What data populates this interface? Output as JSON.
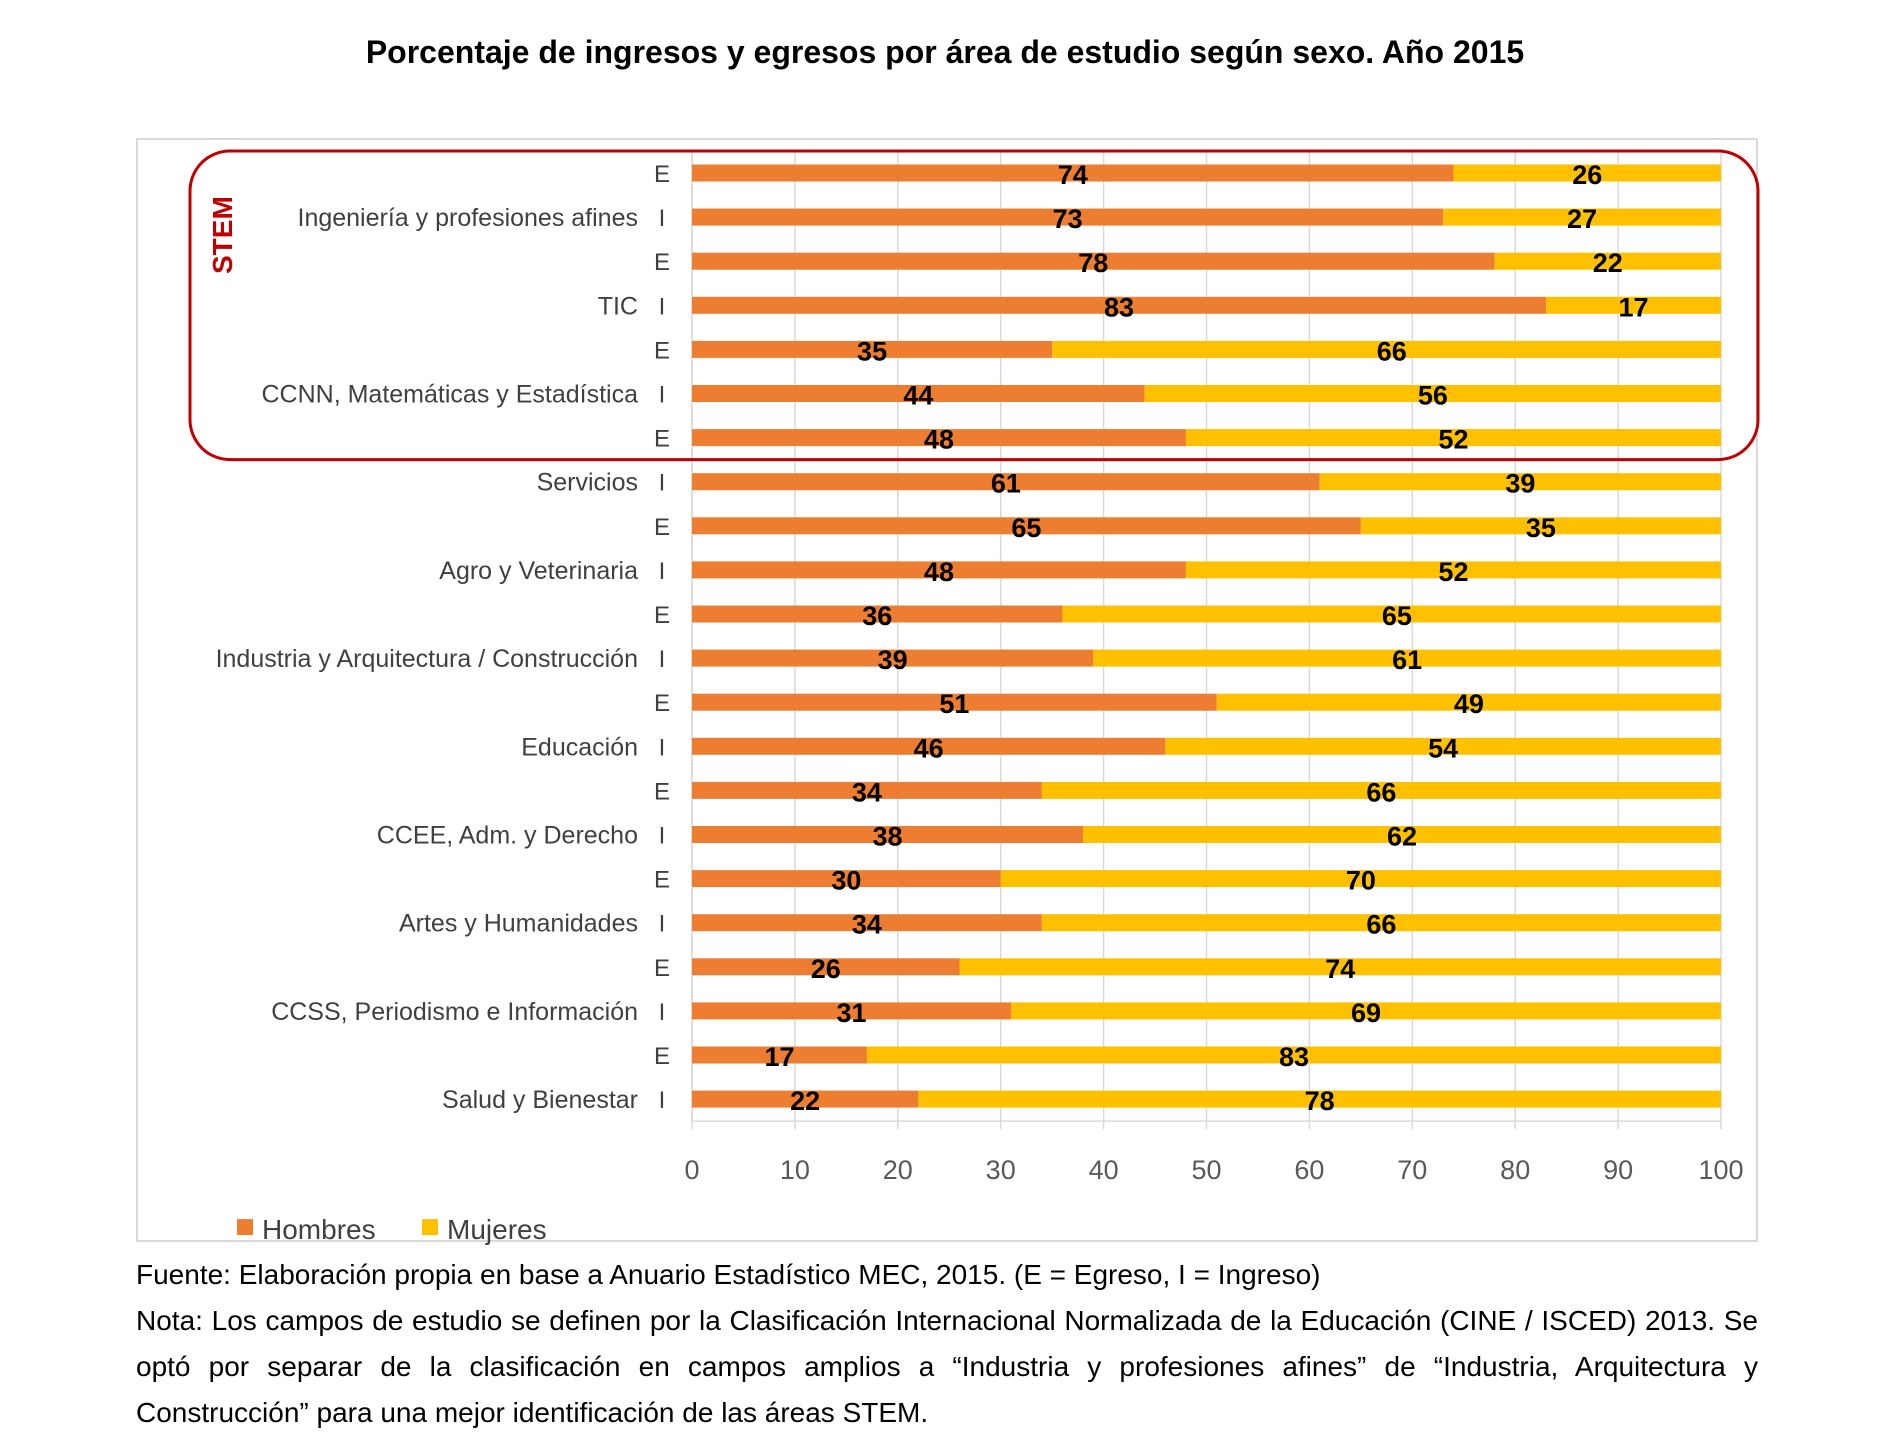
{
  "title": "Porcentaje de ingresos y egresos por área de estudio según sexo. Año 2015",
  "colors": {
    "hombres": "#ED7D31",
    "mujeres": "#FFC000",
    "stem_box": "#C00000",
    "grid": "#D9D9D9",
    "axis_text": "#595959"
  },
  "stem_label": "STEM",
  "notes": {
    "fuente": "Fuente: Elaboración propia en base a Anuario Estadístico MEC, 2015. (E = Egreso, I = Ingreso)",
    "nota": "Nota: Los campos de estudio se definen por la Clasificación Internacional Normalizada de la Educación (CINE / ISCED) 2013. Se optó por separar de la clasificación en campos amplios a “Industria y profesiones afines” de “Industria, Arquitectura y Construcción” para una mejor identificación de las áreas STEM."
  },
  "chart_data": {
    "type": "bar",
    "orientation": "horizontal",
    "stacked": true,
    "title": "Porcentaje de ingresos y egresos por área de estudio según sexo. Año 2015",
    "xlim": [
      0,
      100
    ],
    "xticks": [
      0,
      10,
      20,
      30,
      40,
      50,
      60,
      70,
      80,
      90,
      100
    ],
    "grid": true,
    "legend_position": "bottom-left",
    "categories": [
      {
        "area": "",
        "tipo": "E"
      },
      {
        "area": "Ingeniería y profesiones afines",
        "tipo": "I"
      },
      {
        "area": "",
        "tipo": "E"
      },
      {
        "area": "TIC",
        "tipo": "I"
      },
      {
        "area": "",
        "tipo": "E"
      },
      {
        "area": "CCNN, Matemáticas y Estadística",
        "tipo": "I"
      },
      {
        "area": "",
        "tipo": "E"
      },
      {
        "area": "Servicios",
        "tipo": "I"
      },
      {
        "area": "",
        "tipo": "E"
      },
      {
        "area": "Agro y Veterinaria",
        "tipo": "I"
      },
      {
        "area": "",
        "tipo": "E"
      },
      {
        "area": "Industria y Arquitectura / Construcción",
        "tipo": "I"
      },
      {
        "area": "",
        "tipo": "E"
      },
      {
        "area": "Educación",
        "tipo": "I"
      },
      {
        "area": "",
        "tipo": "E"
      },
      {
        "area": "CCEE, Adm. y Derecho",
        "tipo": "I"
      },
      {
        "area": "",
        "tipo": "E"
      },
      {
        "area": "Artes y Humanidades",
        "tipo": "I"
      },
      {
        "area": "",
        "tipo": "E"
      },
      {
        "area": "CCSS, Periodismo e Información",
        "tipo": "I"
      },
      {
        "area": "",
        "tipo": "E"
      },
      {
        "area": "Salud y Bienestar",
        "tipo": "I"
      }
    ],
    "series": [
      {
        "name": "Hombres",
        "color": "#ED7D31",
        "values": [
          74,
          73,
          78,
          83,
          35,
          44,
          48,
          61,
          65,
          48,
          36,
          39,
          51,
          46,
          34,
          38,
          30,
          34,
          26,
          31,
          17,
          22
        ]
      },
      {
        "name": "Mujeres",
        "color": "#FFC000",
        "values": [
          26,
          27,
          22,
          17,
          66,
          56,
          52,
          39,
          35,
          52,
          65,
          61,
          49,
          54,
          66,
          62,
          70,
          66,
          74,
          69,
          83,
          78
        ]
      }
    ],
    "highlight": {
      "label": "STEM",
      "rows": [
        0,
        6
      ]
    }
  }
}
